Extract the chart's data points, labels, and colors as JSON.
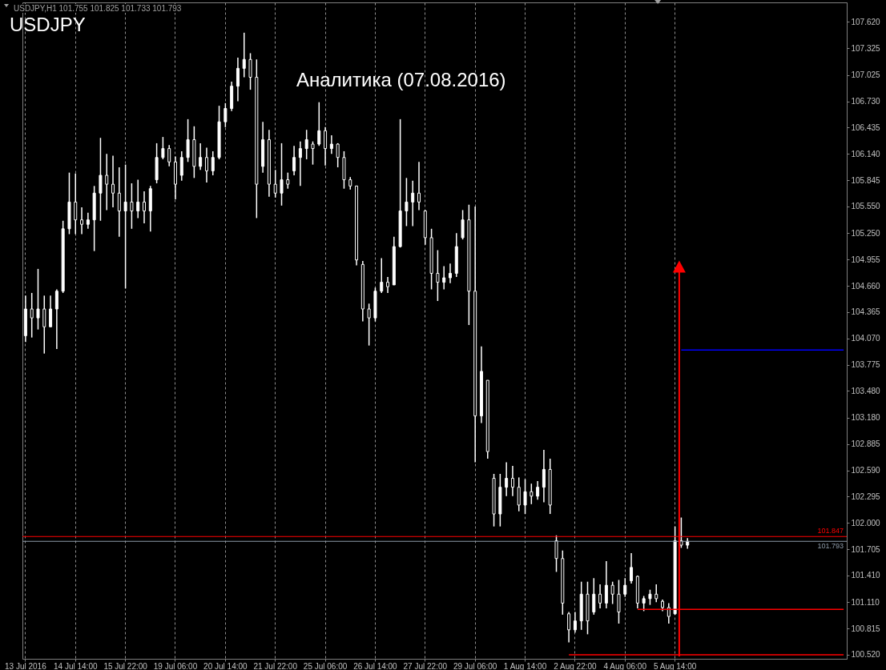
{
  "chart_data": {
    "type": "candlestick",
    "title": "USDJPY",
    "subtitle": "Аналитика (07.08.2016)",
    "annotations": [
      "USDJPY,H1  101.755 101.825 101.733 101.793"
    ],
    "color": "#ffffff",
    "grid": "x",
    "categories": [
      "13 Jul 2016",
      null,
      null,
      null,
      null,
      null,
      null,
      null,
      "14 Jul 14:00",
      null,
      null,
      null,
      null,
      null,
      null,
      null,
      "15 Jul 22:00",
      null,
      null,
      null,
      null,
      null,
      null,
      null,
      "19 Jul 06:00",
      null,
      null,
      null,
      null,
      null,
      null,
      null,
      "20 Jul 14:00",
      null,
      null,
      null,
      null,
      null,
      null,
      null,
      "21 Jul 22:00",
      null,
      null,
      null,
      null,
      null,
      null,
      null,
      "25 Jul 06:00",
      null,
      null,
      null,
      null,
      null,
      null,
      null,
      "26 Jul 14:00",
      null,
      null,
      null,
      null,
      null,
      null,
      null,
      "27 Jul 22:00",
      null,
      null,
      null,
      null,
      null,
      null,
      null,
      "29 Jul 06:00",
      null,
      null,
      null,
      null,
      null,
      null,
      null,
      "1 Aug 14:00",
      null,
      null,
      null,
      null,
      null,
      null,
      null,
      "2 Aug 22:00",
      null,
      null,
      null,
      null,
      null,
      null,
      null,
      "4 Aug 06:00",
      null,
      null,
      null,
      null,
      null,
      null,
      null,
      "5 Aug 14:00",
      null,
      null,
      null,
      null,
      null,
      null,
      null,
      null,
      null,
      null,
      null,
      null,
      null,
      null,
      null,
      null,
      null,
      null,
      null,
      null,
      null,
      null,
      null,
      null,
      null,
      null,
      null
    ],
    "ohlc": [
      [
        104.1,
        104.55,
        104.03,
        104.4
      ],
      [
        104.4,
        104.58,
        104.08,
        104.3
      ],
      [
        104.3,
        104.85,
        104.17,
        104.4
      ],
      [
        104.4,
        104.55,
        103.9,
        104.2
      ],
      [
        104.2,
        104.55,
        104.2,
        104.4
      ],
      [
        104.4,
        104.62,
        103.95,
        104.6
      ],
      [
        104.6,
        105.39,
        104.58,
        105.3
      ],
      [
        105.3,
        105.93,
        105.24,
        105.6
      ],
      [
        105.6,
        105.92,
        105.24,
        105.4
      ],
      [
        105.4,
        105.54,
        105.24,
        105.35
      ],
      [
        105.35,
        105.48,
        105.3,
        105.4
      ],
      [
        105.4,
        105.78,
        105.05,
        105.7
      ],
      [
        105.7,
        106.32,
        105.39,
        105.9
      ],
      [
        105.9,
        106.14,
        105.51,
        105.8
      ],
      [
        105.8,
        106.12,
        105.54,
        105.7
      ],
      [
        105.7,
        105.99,
        105.21,
        105.5
      ],
      [
        105.5,
        106.02,
        104.63,
        105.6
      ],
      [
        105.6,
        105.81,
        105.3,
        105.5
      ],
      [
        105.5,
        105.85,
        105.42,
        105.6
      ],
      [
        105.6,
        105.72,
        105.36,
        105.5
      ],
      [
        105.5,
        105.78,
        105.27,
        105.75
      ],
      [
        105.85,
        106.26,
        105.81,
        106.1
      ],
      [
        106.1,
        106.33,
        106.08,
        106.2
      ],
      [
        106.2,
        106.24,
        106.0,
        106.05
      ],
      [
        106.05,
        106.11,
        105.63,
        105.8
      ],
      [
        105.9,
        106.17,
        105.84,
        106.1
      ],
      [
        106.1,
        106.53,
        106.05,
        106.3
      ],
      [
        106.3,
        106.45,
        105.87,
        106.0
      ],
      [
        106.0,
        106.26,
        105.96,
        106.1
      ],
      [
        106.1,
        106.21,
        105.82,
        105.95
      ],
      [
        105.95,
        106.17,
        105.9,
        106.1
      ],
      [
        106.1,
        106.68,
        106.08,
        106.5
      ],
      [
        106.5,
        106.71,
        106.44,
        106.65
      ],
      [
        106.65,
        106.95,
        106.62,
        106.9
      ],
      [
        106.9,
        107.22,
        106.73,
        107.1
      ],
      [
        107.1,
        107.5,
        107.0,
        107.2
      ],
      [
        107.2,
        107.27,
        106.86,
        107.0
      ],
      [
        107.0,
        107.2,
        105.42,
        105.8
      ],
      [
        106.0,
        106.5,
        105.93,
        106.3
      ],
      [
        106.3,
        106.41,
        105.66,
        105.8
      ],
      [
        105.8,
        105.96,
        105.65,
        105.7
      ],
      [
        105.7,
        106.26,
        105.56,
        105.85
      ],
      [
        105.85,
        105.93,
        105.75,
        105.8
      ],
      [
        105.95,
        106.23,
        105.9,
        106.1
      ],
      [
        106.1,
        106.28,
        105.78,
        106.2
      ],
      [
        106.2,
        106.41,
        106.08,
        106.3
      ],
      [
        106.25,
        106.28,
        106.02,
        106.2
      ],
      [
        106.25,
        106.72,
        106.23,
        106.4
      ],
      [
        106.4,
        106.44,
        106.01,
        106.2
      ],
      [
        106.2,
        106.35,
        106.14,
        106.25
      ],
      [
        106.25,
        106.26,
        105.99,
        106.1
      ],
      [
        106.1,
        106.17,
        105.75,
        105.85
      ],
      [
        105.85,
        105.88,
        105.74,
        105.78
      ],
      [
        105.78,
        105.78,
        104.89,
        104.95
      ],
      [
        104.9,
        104.94,
        104.26,
        104.4
      ],
      [
        104.4,
        104.46,
        103.99,
        104.3
      ],
      [
        104.3,
        104.64,
        104.26,
        104.6
      ],
      [
        104.6,
        104.97,
        104.58,
        104.7
      ],
      [
        104.7,
        104.76,
        104.58,
        104.65
      ],
      [
        104.67,
        105.21,
        104.67,
        105.1
      ],
      [
        105.1,
        106.53,
        105.09,
        105.5
      ],
      [
        105.5,
        105.87,
        105.33,
        105.6
      ],
      [
        105.6,
        105.84,
        105.33,
        105.7
      ],
      [
        105.7,
        106.05,
        105.51,
        105.6
      ],
      [
        105.5,
        105.51,
        105.12,
        105.2
      ],
      [
        105.2,
        105.3,
        104.62,
        104.8
      ],
      [
        104.8,
        105.06,
        104.49,
        104.7
      ],
      [
        104.7,
        104.88,
        104.62,
        104.75
      ],
      [
        104.75,
        104.91,
        104.69,
        104.8
      ],
      [
        104.8,
        105.25,
        104.76,
        105.1
      ],
      [
        105.2,
        105.51,
        105.18,
        105.4
      ],
      [
        105.4,
        105.57,
        104.22,
        104.6
      ],
      [
        104.6,
        105.55,
        102.68,
        103.2
      ],
      [
        103.2,
        103.98,
        103.12,
        103.7
      ],
      [
        103.6,
        103.6,
        102.72,
        102.8
      ],
      [
        102.5,
        102.55,
        101.96,
        102.1
      ],
      [
        102.1,
        102.55,
        101.96,
        102.4
      ],
      [
        102.4,
        102.68,
        102.3,
        102.5
      ],
      [
        102.5,
        102.64,
        102.3,
        102.4
      ],
      [
        102.4,
        102.51,
        102.13,
        102.2
      ],
      [
        102.2,
        102.49,
        102.1,
        102.35
      ],
      [
        102.35,
        102.44,
        102.21,
        102.3
      ],
      [
        102.3,
        102.47,
        102.26,
        102.4
      ],
      [
        102.4,
        102.82,
        102.23,
        102.6
      ],
      [
        102.6,
        102.72,
        102.1,
        102.2
      ],
      [
        101.8,
        101.86,
        101.45,
        101.6
      ],
      [
        101.6,
        101.69,
        100.97,
        101.1
      ],
      [
        100.98,
        101.0,
        100.66,
        100.8
      ],
      [
        100.8,
        101.0,
        100.77,
        100.9
      ],
      [
        100.9,
        101.34,
        100.8,
        101.2
      ],
      [
        101.2,
        101.34,
        100.75,
        100.9
      ],
      [
        101.0,
        101.38,
        100.97,
        101.2
      ],
      [
        101.2,
        101.31,
        101.04,
        101.1
      ],
      [
        101.1,
        101.57,
        101.04,
        101.3
      ],
      [
        101.3,
        101.34,
        101.09,
        101.2
      ],
      [
        101.2,
        101.36,
        100.87,
        101.0
      ],
      [
        101.2,
        101.38,
        101.17,
        101.3
      ],
      [
        101.35,
        101.66,
        101.32,
        101.5
      ],
      [
        101.4,
        101.41,
        101.04,
        101.1
      ],
      [
        101.1,
        101.18,
        101.01,
        101.15
      ],
      [
        101.15,
        101.25,
        101.08,
        101.2
      ],
      [
        101.2,
        101.31,
        101.11,
        101.15
      ],
      [
        101.12,
        101.14,
        101.01,
        101.05
      ],
      [
        101.05,
        101.1,
        100.87,
        100.95
      ],
      [
        100.98,
        101.96,
        100.97,
        101.8
      ],
      [
        101.8,
        102.06,
        101.72,
        101.75
      ],
      [
        101.75,
        101.83,
        101.71,
        101.793
      ],
      null,
      null,
      null,
      null,
      null,
      null,
      null,
      null,
      null,
      null,
      null,
      null,
      null,
      null,
      null,
      null,
      null,
      null,
      null,
      null,
      null,
      null,
      null,
      null,
      null
    ],
    "series": [
      {
        "type": "line",
        "color": "#ff0000",
        "values": [
          null,
          null,
          null,
          null,
          null,
          null,
          null,
          null,
          null,
          null,
          null,
          null,
          null,
          null,
          null,
          null,
          null,
          null,
          null,
          null,
          null,
          null,
          null,
          null,
          null,
          null,
          null,
          null,
          null,
          null,
          null,
          null,
          null,
          null,
          null,
          null,
          null,
          null,
          null,
          null,
          null,
          null,
          null,
          null,
          null,
          null,
          null,
          null,
          null,
          null,
          null,
          null,
          null,
          null,
          null,
          null,
          null,
          null,
          null,
          null,
          null,
          null,
          null,
          null,
          null,
          null,
          null,
          null,
          null,
          null,
          null,
          null,
          null,
          null,
          null,
          null,
          null,
          null,
          null,
          null,
          null,
          null,
          null,
          null,
          null,
          null,
          null,
          null,
          null,
          null,
          null,
          null,
          null,
          null,
          null,
          null,
          null,
          null,
          101.03,
          101.03,
          101.03,
          101.03,
          101.03,
          101.03,
          101.03,
          101.03,
          101.03,
          101.03,
          101.03,
          101.03,
          101.03,
          101.03,
          101.03,
          101.03,
          101.03,
          101.03,
          101.03,
          101.03,
          101.03,
          101.03,
          101.03,
          101.03,
          101.03,
          101.03,
          101.03,
          101.03,
          101.03,
          101.03,
          101.03,
          101.03,
          101.03,
          101.03
        ]
      },
      {
        "type": "line",
        "color": "#ff0000",
        "values": [
          null,
          null,
          null,
          null,
          null,
          null,
          null,
          null,
          null,
          null,
          null,
          null,
          null,
          null,
          null,
          null,
          null,
          null,
          null,
          null,
          null,
          null,
          null,
          null,
          null,
          null,
          null,
          null,
          null,
          null,
          null,
          null,
          null,
          null,
          null,
          null,
          null,
          null,
          null,
          null,
          null,
          null,
          null,
          null,
          null,
          null,
          null,
          null,
          null,
          null,
          null,
          null,
          null,
          null,
          null,
          null,
          null,
          null,
          null,
          null,
          null,
          null,
          null,
          null,
          null,
          null,
          null,
          null,
          null,
          null,
          null,
          null,
          null,
          null,
          null,
          null,
          null,
          null,
          null,
          null,
          null,
          null,
          null,
          null,
          null,
          null,
          null,
          100.52,
          100.52,
          100.52,
          100.52,
          100.52,
          100.52,
          100.52,
          100.52,
          100.52,
          100.52,
          100.52,
          100.52,
          100.52,
          100.52,
          100.52,
          100.52,
          100.52,
          100.52,
          100.52,
          100.52,
          100.52,
          100.52,
          100.52,
          100.52,
          100.52,
          100.52,
          100.52,
          100.52,
          100.52,
          100.52,
          100.52,
          100.52,
          100.52,
          100.52,
          100.52,
          100.52,
          100.52,
          100.52,
          100.52,
          100.52,
          100.52,
          100.52,
          100.52,
          100.52,
          100.52
        ]
      },
      {
        "type": "line",
        "color": "#0000ff",
        "values": [
          null,
          null,
          null,
          null,
          null,
          null,
          null,
          null,
          null,
          null,
          null,
          null,
          null,
          null,
          null,
          null,
          null,
          null,
          null,
          null,
          null,
          null,
          null,
          null,
          null,
          null,
          null,
          null,
          null,
          null,
          null,
          null,
          null,
          null,
          null,
          null,
          null,
          null,
          null,
          null,
          null,
          null,
          null,
          null,
          null,
          null,
          null,
          null,
          null,
          null,
          null,
          null,
          null,
          null,
          null,
          null,
          null,
          null,
          null,
          null,
          null,
          null,
          null,
          null,
          null,
          null,
          null,
          null,
          null,
          null,
          null,
          null,
          null,
          null,
          null,
          null,
          null,
          null,
          null,
          null,
          null,
          null,
          null,
          null,
          null,
          null,
          null,
          null,
          null,
          null,
          null,
          null,
          null,
          null,
          null,
          null,
          null,
          null,
          null,
          null,
          null,
          null,
          null,
          null,
          null,
          103.94,
          103.94,
          103.94,
          103.94,
          103.94,
          103.94,
          103.94,
          103.94,
          103.94,
          103.94,
          103.94,
          103.94,
          103.94,
          103.94,
          103.94,
          103.94,
          103.94,
          103.94,
          103.94,
          103.94,
          103.94,
          103.94,
          103.94,
          103.94,
          103.94,
          103.94,
          103.94
        ]
      }
    ],
    "ref_lines": [
      {
        "axis": "y",
        "value": 101.847,
        "label": "101.847",
        "color": "#ff0000"
      },
      {
        "axis": "y",
        "value": 101.793,
        "label": "101.793",
        "color": "#8c9aa8"
      }
    ],
    "ylim": [
      100.475,
      107.84
    ],
    "yticks": [
      {
        "value": 107.62,
        "label": "107.620"
      },
      {
        "value": 107.325,
        "label": "107.325"
      },
      {
        "value": 107.025,
        "label": "107.025"
      },
      {
        "value": 106.73,
        "label": "106.730"
      },
      {
        "value": 106.435,
        "label": "106.435"
      },
      {
        "value": 106.14,
        "label": "106.140"
      },
      {
        "value": 105.845,
        "label": "105.845"
      },
      {
        "value": 105.55,
        "label": "105.550"
      },
      {
        "value": 105.25,
        "label": "105.250"
      },
      {
        "value": 104.955,
        "label": "104.955"
      },
      {
        "value": 104.66,
        "label": "104.660"
      },
      {
        "value": 104.365,
        "label": "104.365"
      },
      {
        "value": 104.07,
        "label": "104.070"
      },
      {
        "value": 103.775,
        "label": "103.775"
      },
      {
        "value": 103.48,
        "label": "103.480"
      },
      {
        "value": 103.18,
        "label": "103.180"
      },
      {
        "value": 102.885,
        "label": "102.885"
      },
      {
        "value": 102.59,
        "label": "102.590"
      },
      {
        "value": 102.295,
        "label": "102.295"
      },
      {
        "value": 102.0,
        "label": "102.000"
      },
      {
        "value": 101.705,
        "label": "101.705"
      },
      {
        "value": 101.41,
        "label": "101.410"
      },
      {
        "value": 101.11,
        "label": "101.110"
      },
      {
        "value": 100.815,
        "label": "100.815"
      },
      {
        "value": 100.52,
        "label": "100.520"
      }
    ]
  }
}
